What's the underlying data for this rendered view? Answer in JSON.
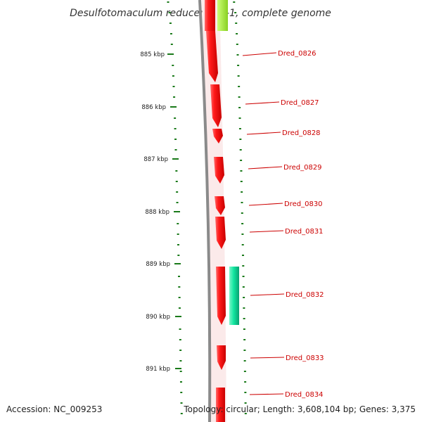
{
  "title": "Desulfotomaculum reducens MI-1, complete genome",
  "footer": {
    "accession": "Accession: NC_009253",
    "topology": "Topology: circular; Length: 3,608,104 bp; Genes: 3,375"
  },
  "scale_labels": [
    "885 kbp",
    "886 kbp",
    "887 kbp",
    "888 kbp",
    "889 kbp",
    "890 kbp",
    "891 kbp"
  ],
  "genes": [
    {
      "label": "Dred_0826"
    },
    {
      "label": "Dred_0827"
    },
    {
      "label": "Dred_0828"
    },
    {
      "label": "Dred_0829"
    },
    {
      "label": "Dred_0830"
    },
    {
      "label": "Dred_0831"
    },
    {
      "label": "Dred_0832"
    },
    {
      "label": "Dred_0833"
    },
    {
      "label": "Dred_0834"
    }
  ],
  "colors": {
    "gene": "#ff0000",
    "highlight": "#99e633",
    "feature": "#11e6a0",
    "tick": "#1a7a1a",
    "backbone": "#8a8a8a",
    "label": "#cc0000"
  }
}
